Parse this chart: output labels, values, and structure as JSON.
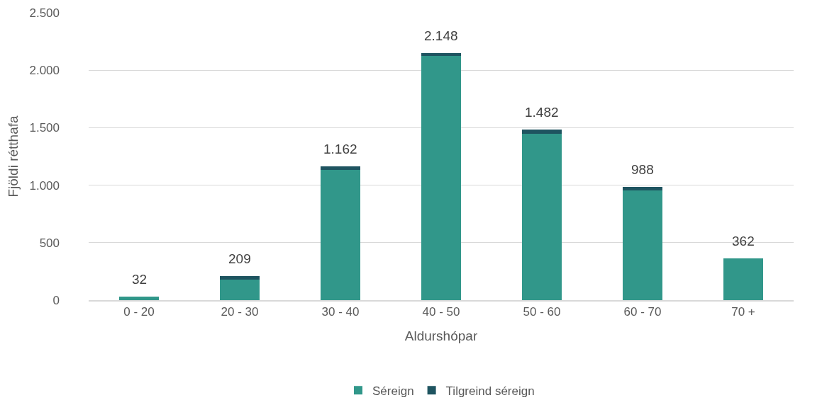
{
  "chart_data": {
    "type": "bar",
    "stacked": true,
    "xlabel": "Aldurshópar",
    "ylabel": "Fjöldi rétthafa",
    "categories": [
      "0 - 20",
      "20 - 30",
      "30 - 40",
      "40 - 50",
      "50 - 60",
      "60 - 70",
      "70 +"
    ],
    "series": [
      {
        "name": "Séreign",
        "color": "#31978a",
        "values": [
          32,
          176,
          1132,
          2122,
          1447,
          956,
          362
        ]
      },
      {
        "name": "Tilgreind séreign",
        "color": "#1e5460",
        "values": [
          0,
          33,
          30,
          26,
          35,
          32,
          0
        ]
      }
    ],
    "totals": [
      "32",
      "209",
      "1.162",
      "2.148",
      "1.482",
      "988",
      "362"
    ],
    "ylim": [
      0,
      2500
    ],
    "yticks": [
      0,
      {
        "value": 500,
        "label": "500"
      },
      {
        "value": 1000,
        "label": "1.000"
      },
      {
        "value": 1500,
        "label": "1.500"
      },
      {
        "value": 2000,
        "label": "2.000"
      },
      {
        "value": 2500,
        "label": "2.500"
      }
    ],
    "grid": "y",
    "legend": "bottom"
  }
}
